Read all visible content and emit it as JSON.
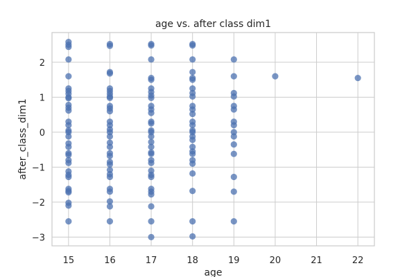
{
  "chart_data": {
    "type": "scatter",
    "title": "age vs. after class dim1",
    "xlabel": "age",
    "ylabel": "after_class_dim1",
    "xlim": [
      14.6,
      22.4
    ],
    "ylim": [
      -3.25,
      2.85
    ],
    "xticks": [
      15,
      16,
      17,
      18,
      19,
      20,
      21,
      22
    ],
    "yticks": [
      -3,
      -2,
      -1,
      0,
      1,
      2
    ],
    "grid": true,
    "point_color": "#4c72b0",
    "point_alpha": 0.75,
    "series": [
      {
        "points": [
          [
            15,
            2.58
          ],
          [
            15,
            2.5
          ],
          [
            15,
            2.44
          ],
          [
            15,
            2.08
          ],
          [
            15,
            1.6
          ],
          [
            15,
            1.25
          ],
          [
            15,
            1.18
          ],
          [
            15,
            1.1
          ],
          [
            15,
            1.0
          ],
          [
            15,
            0.97
          ],
          [
            15,
            0.78
          ],
          [
            15,
            0.7
          ],
          [
            15,
            0.62
          ],
          [
            15,
            0.3
          ],
          [
            15,
            0.2
          ],
          [
            15,
            0.05
          ],
          [
            15,
            0.0
          ],
          [
            15,
            -0.12
          ],
          [
            15,
            -0.32
          ],
          [
            15,
            -0.42
          ],
          [
            15,
            -0.6
          ],
          [
            15,
            -0.65
          ],
          [
            15,
            -0.8
          ],
          [
            15,
            -0.88
          ],
          [
            15,
            -1.12
          ],
          [
            15,
            -1.22
          ],
          [
            15,
            -1.28
          ],
          [
            15,
            -1.62
          ],
          [
            15,
            -1.68
          ],
          [
            15,
            -1.72
          ],
          [
            15,
            -2.02
          ],
          [
            15,
            -2.1
          ],
          [
            15,
            -2.55
          ],
          [
            16,
            2.52
          ],
          [
            16,
            2.47
          ],
          [
            16,
            1.72
          ],
          [
            16,
            1.68
          ],
          [
            16,
            1.25
          ],
          [
            16,
            1.18
          ],
          [
            16,
            1.1
          ],
          [
            16,
            1.02
          ],
          [
            16,
            0.98
          ],
          [
            16,
            0.75
          ],
          [
            16,
            0.68
          ],
          [
            16,
            0.6
          ],
          [
            16,
            0.3
          ],
          [
            16,
            0.2
          ],
          [
            16,
            0.08
          ],
          [
            16,
            0.0
          ],
          [
            16,
            -0.12
          ],
          [
            16,
            -0.3
          ],
          [
            16,
            -0.42
          ],
          [
            16,
            -0.6
          ],
          [
            16,
            -0.68
          ],
          [
            16,
            -0.85
          ],
          [
            16,
            -0.92
          ],
          [
            16,
            -1.08
          ],
          [
            16,
            -1.2
          ],
          [
            16,
            -1.28
          ],
          [
            16,
            -1.62
          ],
          [
            16,
            -1.7
          ],
          [
            16,
            -1.98
          ],
          [
            16,
            -2.12
          ],
          [
            16,
            -2.55
          ],
          [
            17,
            2.52
          ],
          [
            17,
            2.48
          ],
          [
            17,
            2.08
          ],
          [
            17,
            1.55
          ],
          [
            17,
            1.5
          ],
          [
            17,
            1.25
          ],
          [
            17,
            1.15
          ],
          [
            17,
            1.05
          ],
          [
            17,
            0.98
          ],
          [
            17,
            0.75
          ],
          [
            17,
            0.65
          ],
          [
            17,
            0.55
          ],
          [
            17,
            0.3
          ],
          [
            17,
            0.25
          ],
          [
            17,
            0.05
          ],
          [
            17,
            0.0
          ],
          [
            17,
            -0.12
          ],
          [
            17,
            -0.28
          ],
          [
            17,
            -0.42
          ],
          [
            17,
            -0.58
          ],
          [
            17,
            -0.62
          ],
          [
            17,
            -0.8
          ],
          [
            17,
            -0.88
          ],
          [
            17,
            -1.1
          ],
          [
            17,
            -1.22
          ],
          [
            17,
            -1.28
          ],
          [
            17,
            -1.62
          ],
          [
            17,
            -1.7
          ],
          [
            17,
            -1.78
          ],
          [
            17,
            -2.12
          ],
          [
            17,
            -2.55
          ],
          [
            17,
            -3.0
          ],
          [
            18,
            2.52
          ],
          [
            18,
            2.48
          ],
          [
            18,
            2.08
          ],
          [
            18,
            1.72
          ],
          [
            18,
            1.55
          ],
          [
            18,
            1.5
          ],
          [
            18,
            1.25
          ],
          [
            18,
            1.12
          ],
          [
            18,
            1.02
          ],
          [
            18,
            0.75
          ],
          [
            18,
            0.65
          ],
          [
            18,
            0.52
          ],
          [
            18,
            0.3
          ],
          [
            18,
            0.2
          ],
          [
            18,
            0.05
          ],
          [
            18,
            0.0
          ],
          [
            18,
            -0.12
          ],
          [
            18,
            -0.22
          ],
          [
            18,
            -0.42
          ],
          [
            18,
            -0.55
          ],
          [
            18,
            -0.62
          ],
          [
            18,
            -0.8
          ],
          [
            18,
            -0.9
          ],
          [
            18,
            -1.18
          ],
          [
            18,
            -1.68
          ],
          [
            18,
            -2.55
          ],
          [
            18,
            -2.98
          ],
          [
            19,
            2.08
          ],
          [
            19,
            1.6
          ],
          [
            19,
            1.12
          ],
          [
            19,
            1.02
          ],
          [
            19,
            0.75
          ],
          [
            19,
            0.65
          ],
          [
            19,
            0.3
          ],
          [
            19,
            0.2
          ],
          [
            19,
            0.0
          ],
          [
            19,
            -0.12
          ],
          [
            19,
            -0.35
          ],
          [
            19,
            -0.62
          ],
          [
            19,
            -1.28
          ],
          [
            19,
            -1.7
          ],
          [
            19,
            -2.55
          ],
          [
            20,
            1.6
          ],
          [
            22,
            1.55
          ]
        ]
      }
    ]
  }
}
